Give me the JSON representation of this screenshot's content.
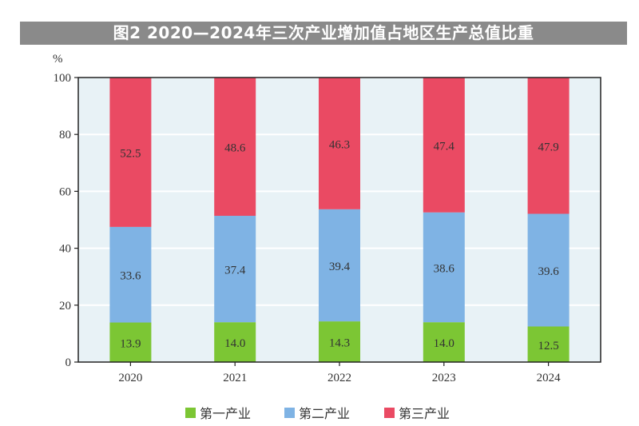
{
  "chart_data": {
    "type": "bar",
    "stacked": true,
    "title": "图2 2020—2024年三次产业增加值占地区生产总值比重",
    "ylabel": "%",
    "xlabel": "",
    "ylim": [
      0,
      100
    ],
    "yticks": [
      0,
      20,
      40,
      60,
      80,
      100
    ],
    "grid": true,
    "legend_position": "bottom",
    "categories": [
      "2020",
      "2021",
      "2022",
      "2023",
      "2024"
    ],
    "series": [
      {
        "name": "第一产业",
        "color": "#7cc634",
        "values": [
          13.9,
          14.0,
          14.3,
          14.0,
          12.5
        ]
      },
      {
        "name": "第二产业",
        "color": "#7fb3e4",
        "values": [
          33.6,
          37.4,
          39.4,
          38.6,
          39.6
        ]
      },
      {
        "name": "第三产业",
        "color": "#ea4a63",
        "values": [
          52.5,
          48.6,
          46.3,
          47.4,
          47.9
        ]
      }
    ],
    "plot_background": "#e8f2f6"
  }
}
